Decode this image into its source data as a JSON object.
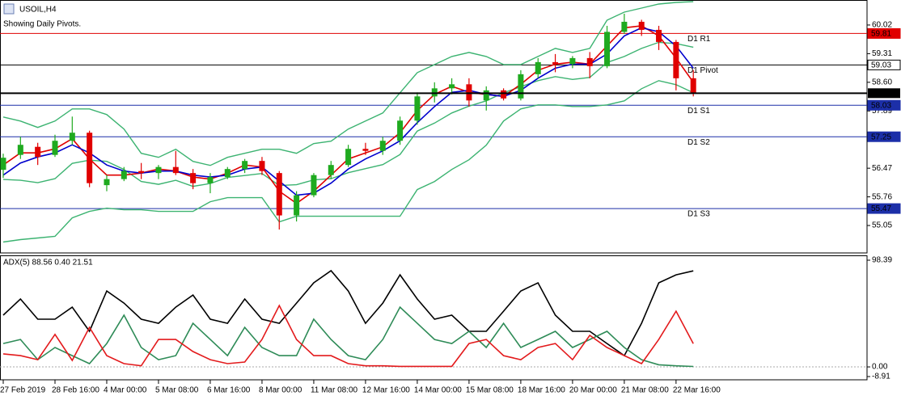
{
  "chart_data": [
    {
      "type": "candlestick",
      "title": "USOIL,H4",
      "subtitle": "Showing Daily Pivots.",
      "categories": [
        "27 Feb 2019",
        null,
        null,
        "28 Feb 16:00",
        null,
        null,
        "4 Mar 00:00",
        null,
        null,
        "5 Mar 08:00",
        null,
        null,
        "6 Mar 16:00",
        null,
        null,
        "8 Mar 00:00",
        null,
        null,
        "11 Mar 08:00",
        null,
        null,
        "12 Mar 16:00",
        null,
        null,
        "14 Mar 00:00",
        null,
        null,
        "15 Mar 08:00",
        null,
        null,
        "18 Mar 16:00",
        null,
        null,
        "20 Mar 00:00",
        null,
        null,
        "21 Mar 08:00",
        null,
        null,
        "22 Mar 16:00",
        null
      ],
      "open": [
        56.43,
        56.8,
        57.0,
        56.8,
        57.15,
        57.35,
        56.05,
        56.2,
        56.4,
        56.35,
        56.5,
        56.35,
        56.1,
        56.25,
        56.45,
        56.65,
        56.35,
        55.3,
        55.8,
        56.3,
        56.55,
        56.95,
        56.9,
        57.15,
        57.65,
        58.25,
        58.45,
        58.55,
        58.15,
        58.4,
        58.2,
        58.8,
        59.1,
        59.05,
        59.2,
        59.0,
        59.85,
        60.1,
        59.9,
        59.6,
        58.7
      ],
      "high": [
        56.83,
        57.25,
        57.1,
        57.3,
        57.75,
        57.4,
        56.3,
        56.5,
        56.6,
        56.55,
        56.9,
        56.45,
        56.35,
        56.5,
        56.7,
        56.75,
        56.4,
        55.9,
        56.35,
        56.65,
        57.05,
        57.1,
        57.25,
        57.75,
        58.35,
        58.6,
        58.7,
        58.7,
        58.5,
        58.45,
        58.9,
        59.2,
        59.3,
        59.25,
        59.35,
        60.0,
        60.3,
        60.15,
        60.0,
        59.65,
        58.9
      ],
      "low": [
        56.23,
        56.7,
        56.55,
        56.75,
        57.05,
        56.0,
        55.9,
        56.15,
        56.2,
        56.2,
        56.3,
        55.95,
        55.85,
        56.2,
        56.35,
        56.3,
        54.95,
        55.15,
        55.75,
        56.2,
        56.5,
        56.8,
        56.8,
        57.05,
        57.55,
        58.1,
        58.3,
        58.0,
        57.9,
        58.15,
        58.15,
        58.7,
        58.85,
        58.95,
        58.7,
        58.95,
        59.8,
        59.75,
        59.4,
        58.4,
        58.25
      ],
      "close": [
        56.73,
        57.05,
        56.75,
        57.15,
        57.35,
        56.1,
        56.2,
        56.4,
        56.35,
        56.5,
        56.35,
        56.1,
        56.25,
        56.45,
        56.65,
        56.4,
        55.3,
        55.8,
        56.3,
        56.55,
        56.95,
        56.9,
        57.15,
        57.65,
        58.25,
        58.45,
        58.55,
        58.15,
        58.4,
        58.2,
        58.8,
        59.1,
        59.05,
        59.2,
        59.0,
        59.85,
        60.1,
        59.9,
        59.6,
        58.7,
        58.33
      ],
      "up_color": "#1faa1f",
      "down_color": "#e00000",
      "series": [
        {
          "color": "#3cb371",
          "values": [
            57.74,
            57.64,
            57.48,
            57.64,
            57.94,
            57.94,
            57.8,
            57.44,
            56.84,
            56.74,
            56.94,
            56.64,
            56.54,
            56.74,
            56.84,
            56.94,
            56.94,
            56.84,
            57.08,
            57.14,
            57.44,
            57.64,
            57.84,
            58.34,
            58.84,
            59.04,
            59.24,
            59.34,
            59.24,
            59.04,
            59.04,
            59.24,
            59.44,
            59.34,
            59.44,
            60.14,
            60.34,
            60.44,
            60.54,
            60.58,
            60.6
          ]
        },
        {
          "color": "#3cb371",
          "values": [
            56.19,
            56.17,
            56.11,
            56.21,
            56.59,
            56.67,
            56.64,
            56.44,
            56.14,
            56.07,
            56.17,
            56.02,
            56.09,
            56.24,
            56.29,
            56.34,
            56.04,
            56.06,
            56.18,
            56.21,
            56.36,
            56.46,
            56.56,
            56.81,
            57.39,
            57.59,
            57.84,
            58.01,
            58.14,
            58.34,
            58.49,
            58.64,
            58.74,
            58.67,
            58.72,
            59.09,
            59.24,
            59.44,
            59.59,
            59.56,
            59.47
          ]
        },
        {
          "color": "#3cb371",
          "values": [
            54.64,
            54.7,
            54.74,
            54.78,
            55.24,
            55.4,
            55.48,
            55.44,
            55.44,
            55.4,
            55.4,
            55.4,
            55.64,
            55.74,
            55.74,
            55.74,
            55.14,
            55.28,
            55.28,
            55.28,
            55.28,
            55.28,
            55.28,
            55.28,
            55.94,
            56.14,
            56.44,
            56.68,
            57.04,
            57.64,
            57.94,
            58.04,
            58.04,
            58.0,
            58.0,
            58.04,
            58.14,
            58.44,
            58.64,
            58.54,
            58.34
          ]
        },
        {
          "color": "#e00000",
          "values": [
            56.55,
            56.85,
            56.85,
            56.95,
            57.2,
            56.7,
            56.3,
            56.3,
            56.35,
            56.45,
            56.4,
            56.25,
            56.2,
            56.35,
            56.55,
            56.5,
            55.9,
            55.6,
            55.9,
            56.3,
            56.7,
            56.85,
            57.0,
            57.35,
            57.9,
            58.3,
            58.5,
            58.35,
            58.3,
            58.25,
            58.55,
            58.9,
            59.05,
            59.1,
            59.05,
            59.5,
            59.95,
            60.0,
            59.75,
            59.2,
            58.6
          ]
        },
        {
          "color": "#0000cd",
          "values": [
            56.3,
            56.6,
            56.75,
            56.85,
            57.05,
            56.85,
            56.55,
            56.4,
            56.35,
            56.4,
            56.4,
            56.3,
            56.25,
            56.3,
            56.45,
            56.5,
            56.15,
            55.8,
            55.85,
            56.1,
            56.45,
            56.7,
            56.9,
            57.15,
            57.6,
            58.0,
            58.35,
            58.4,
            58.3,
            58.25,
            58.4,
            58.7,
            58.95,
            59.05,
            59.05,
            59.3,
            59.75,
            59.95,
            59.85,
            59.5,
            58.95
          ]
        }
      ],
      "levels": [
        {
          "label": "D1 R1",
          "value": 59.81,
          "color": "#e00000"
        },
        {
          "label": "D1 Pivot",
          "value": 59.03,
          "color": "#000000",
          "box": "#ffffff"
        },
        {
          "label": "D1 S1",
          "value": 58.03,
          "color": "#1c2fa8"
        },
        {
          "label": "D1 S2",
          "value": 57.25,
          "color": "#1c2fa8"
        },
        {
          "label": "D1 S3",
          "value": 55.47,
          "color": "#1c2fa8"
        }
      ],
      "last_price": 58.33,
      "ylim": [
        54.39,
        60.64
      ],
      "yticks": [
        60.02,
        59.31,
        {
          "value": 58.6,
          "label": "58.60"
        },
        57.89,
        56.47,
        55.76,
        55.05
      ]
    },
    {
      "type": "line",
      "title": "ADX(5) 88.56 0.40 21.51",
      "series": [
        {
          "color": "#000000",
          "values": [
            47.7,
            62.6,
            44,
            44,
            55.1,
            32.8,
            70,
            58.8,
            44,
            40.2,
            55.1,
            66.3,
            44,
            40.2,
            62.6,
            44,
            40.2,
            58.8,
            77.5,
            88.7,
            70,
            40.2,
            58.8,
            84.9,
            62.6,
            44,
            47.7,
            32.8,
            32.8,
            51.4,
            70,
            77.5,
            47.7,
            32.8,
            32.8,
            21.6,
            10.4,
            40.2,
            77.5,
            84.9,
            88.56
          ]
        },
        {
          "color": "#2e8b57",
          "values": [
            21.6,
            25.3,
            6.7,
            17.9,
            10.4,
            3,
            21.6,
            47.7,
            17.9,
            6.7,
            10.4,
            40.2,
            25.3,
            10.4,
            36.5,
            17.9,
            10.4,
            10.4,
            44,
            25.3,
            10.4,
            6.7,
            25.3,
            55.1,
            40.2,
            25.3,
            21.6,
            32.8,
            17.9,
            40.2,
            17.9,
            25.3,
            32.8,
            17.9,
            25.3,
            32.8,
            17.9,
            6.7,
            2,
            1,
            0.4
          ]
        },
        {
          "color": "#e31a1c",
          "values": [
            12,
            10.4,
            6.7,
            30,
            6,
            36.5,
            10.4,
            3,
            1,
            25.3,
            25.3,
            14.2,
            6.7,
            3,
            4.5,
            25.3,
            56.6,
            25.3,
            10.4,
            10.4,
            3,
            1,
            1,
            0.5,
            0.5,
            0.5,
            0.5,
            21.6,
            25.3,
            10.4,
            6.7,
            17.9,
            21.6,
            6.7,
            29.1,
            17.9,
            10.4,
            3,
            25.3,
            51.4,
            21.51
          ]
        }
      ],
      "ylim": [
        -8.91,
        98.39
      ],
      "yticks": [
        98.39,
        {
          "value": 0,
          "label": "0.00"
        },
        -8.91
      ]
    }
  ]
}
